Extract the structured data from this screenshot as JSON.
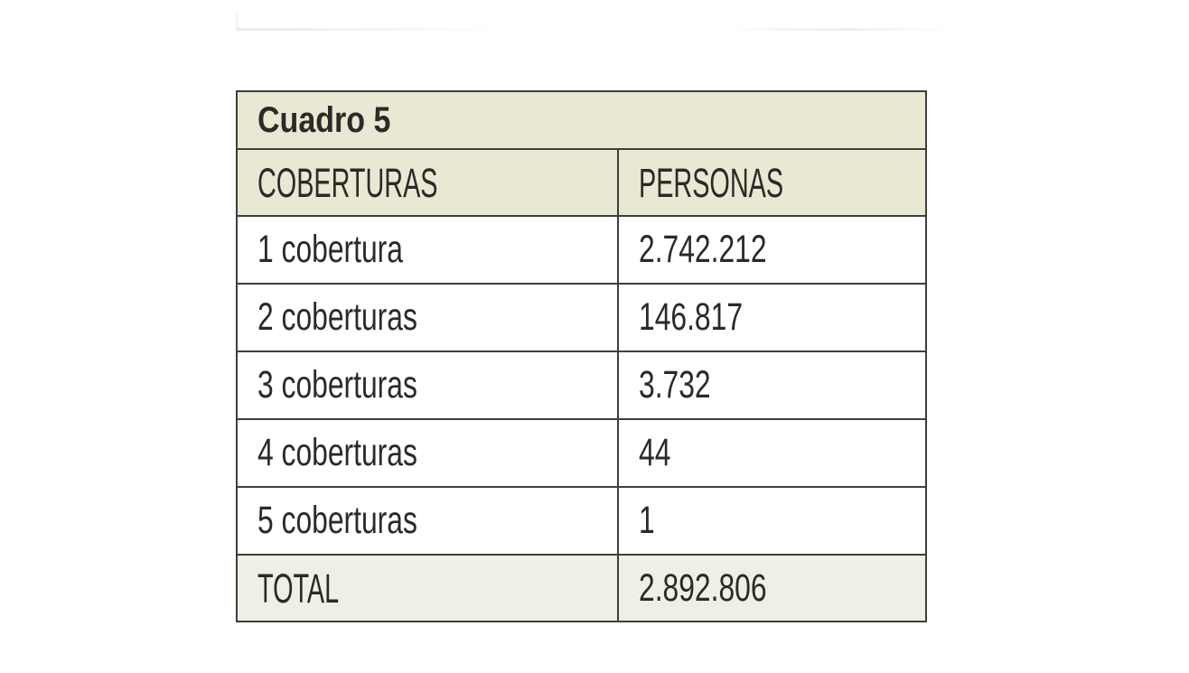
{
  "table": {
    "title": "Cuadro 5",
    "columns": [
      {
        "label": "COBERTURAS"
      },
      {
        "label": "PERSONAS"
      }
    ],
    "rows": [
      {
        "label": "1 cobertura",
        "value": "2.742.212"
      },
      {
        "label": "2 coberturas",
        "value": "146.817"
      },
      {
        "label": "3 coberturas",
        "value": "3.732"
      },
      {
        "label": "4 coberturas",
        "value": "44"
      },
      {
        "label": "5 coberturas",
        "value": "1"
      }
    ],
    "total": {
      "label": "TOTAL",
      "value": "2.892.806"
    },
    "colors": {
      "header_bg": "#e8e8d3",
      "total_bg": "#f0efe5",
      "row_bg": "#ffffff",
      "border": "#3e3e3c",
      "text": "#2b2a28",
      "page_bg": "#ffffff"
    }
  },
  "chart_data": {
    "type": "table",
    "title": "Cuadro 5",
    "categories": [
      "1 cobertura",
      "2 coberturas",
      "3 coberturas",
      "4 coberturas",
      "5 coberturas"
    ],
    "values": [
      2742212,
      146817,
      3732,
      44,
      1
    ],
    "total": 2892806,
    "xlabel": "COBERTURAS",
    "ylabel": "PERSONAS"
  }
}
